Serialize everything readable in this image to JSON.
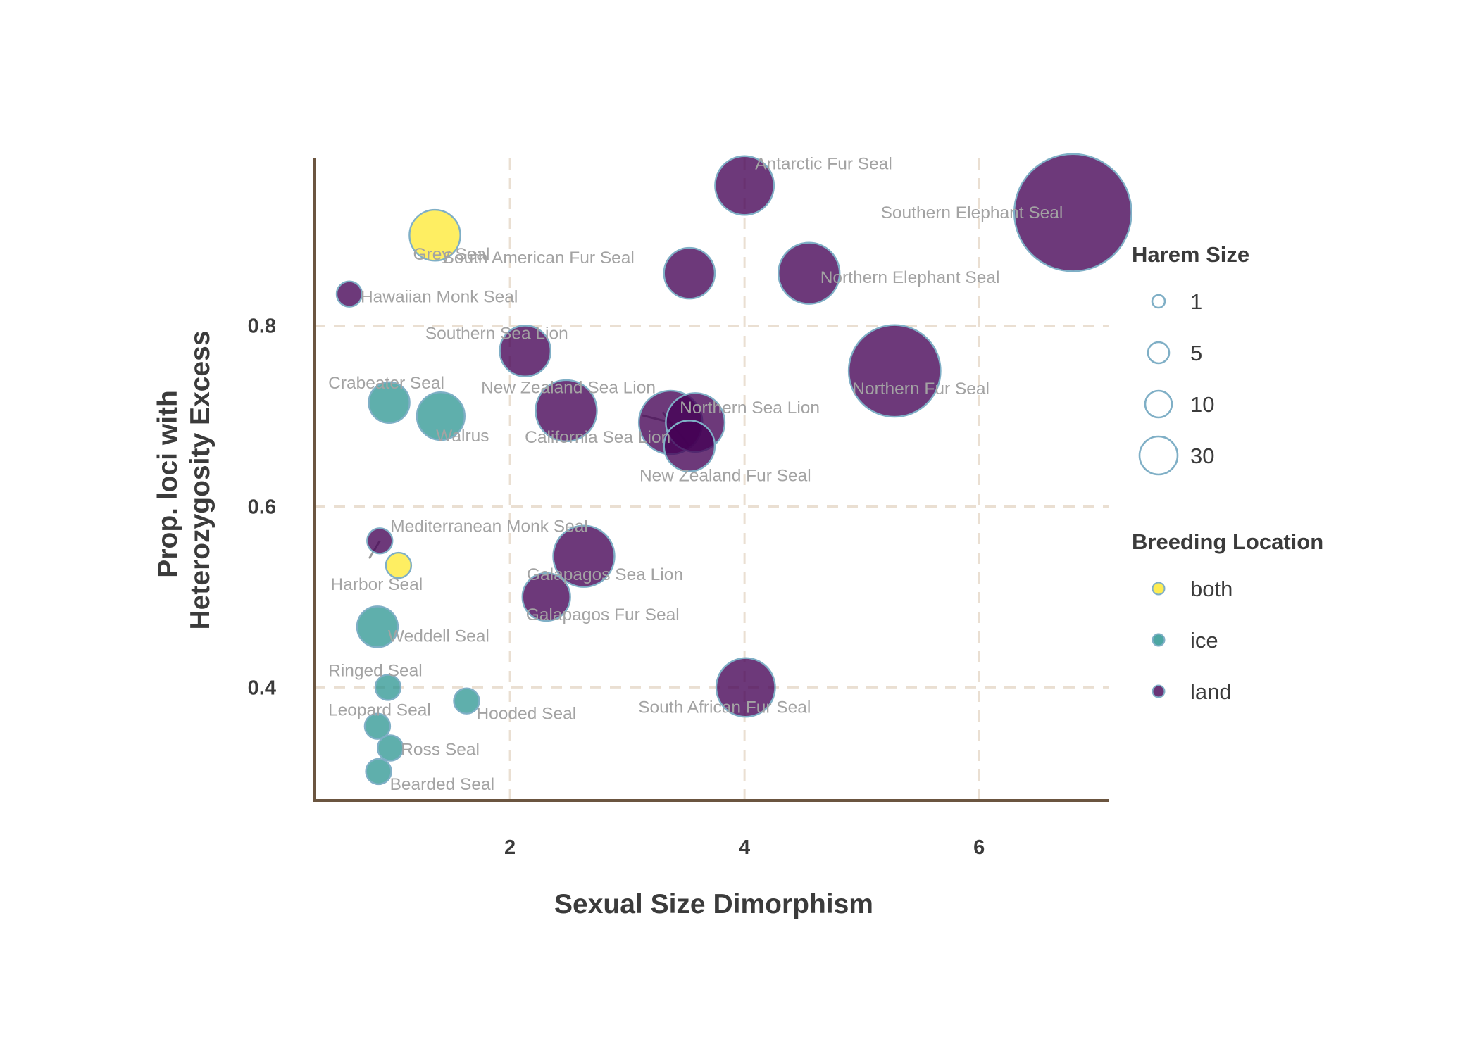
{
  "chart_data": {
    "type": "scatter",
    "xlabel": "Sexual Size Dimorphism",
    "ylabel_lines": [
      "Prop. loci with",
      "Heterozygosity Excess"
    ],
    "xlim": [
      0.33,
      7.11
    ],
    "ylim": [
      0.275,
      0.985
    ],
    "x_ticks": [
      {
        "value": 2,
        "label": "2"
      },
      {
        "value": 4,
        "label": "4"
      },
      {
        "value": 6,
        "label": "6"
      }
    ],
    "y_ticks": [
      {
        "value": 0.4,
        "label": "0.4"
      },
      {
        "value": 0.6,
        "label": "0.6"
      },
      {
        "value": 0.8,
        "label": "0.8"
      }
    ],
    "grid": "dashed major gridlines",
    "colors": {
      "both": "#fde725",
      "ice": "#21908c",
      "land": "#440154",
      "point_stroke": "#7fafc6",
      "axis": "#6b5540",
      "grid": "#eadfd2"
    },
    "legend": {
      "placement": "right",
      "size_title": "Harem Size",
      "size_entries": [
        {
          "label": "1",
          "harem": 1
        },
        {
          "label": "5",
          "harem": 5
        },
        {
          "label": "10",
          "harem": 10
        },
        {
          "label": "30",
          "harem": 30
        }
      ],
      "color_title": "Breeding Location",
      "color_entries": [
        {
          "label": "both",
          "key": "both"
        },
        {
          "label": "ice",
          "key": "ice"
        },
        {
          "label": "land",
          "key": "land"
        }
      ]
    },
    "points": [
      {
        "name": "Antarctic Fur Seal",
        "x": 4.0,
        "y": 0.955,
        "harem": 10,
        "breeding": "land"
      },
      {
        "name": "Southern Elephant Seal",
        "x": 6.8,
        "y": 0.925,
        "harem": 48,
        "breeding": "land"
      },
      {
        "name": "Grey Seal",
        "x": 1.36,
        "y": 0.9,
        "harem": 7,
        "breeding": "both"
      },
      {
        "name": "South American Fur Seal",
        "x": 3.53,
        "y": 0.858,
        "harem": 7,
        "breeding": "land"
      },
      {
        "name": "Northern Elephant Seal",
        "x": 4.55,
        "y": 0.858,
        "harem": 11,
        "breeding": "land"
      },
      {
        "name": "Hawaiian Monk Seal",
        "x": 0.63,
        "y": 0.835,
        "harem": 1,
        "breeding": "land"
      },
      {
        "name": "Southern Sea Lion",
        "x": 2.13,
        "y": 0.772,
        "harem": 7,
        "breeding": "land"
      },
      {
        "name": "Northern Fur Seal",
        "x": 5.28,
        "y": 0.75,
        "harem": 28,
        "breeding": "land"
      },
      {
        "name": "Crabeater Seal",
        "x": 0.97,
        "y": 0.715,
        "harem": 4,
        "breeding": "ice"
      },
      {
        "name": "Walrus",
        "x": 1.41,
        "y": 0.7,
        "harem": 6,
        "breeding": "ice"
      },
      {
        "name": "New Zealand Sea Lion",
        "x": 2.48,
        "y": 0.706,
        "harem": 11,
        "breeding": "land"
      },
      {
        "name": "Northern Sea Lion",
        "x": 3.58,
        "y": 0.693,
        "harem": 10,
        "breeding": "land"
      },
      {
        "name": "California Sea Lion",
        "x": 3.37,
        "y": 0.693,
        "harem": 12,
        "breeding": "land"
      },
      {
        "name": "New Zealand Fur Seal",
        "x": 3.53,
        "y": 0.667,
        "harem": 7,
        "breeding": "land"
      },
      {
        "name": "Mediterranean Monk Seal",
        "x": 0.89,
        "y": 0.562,
        "harem": 1,
        "breeding": "land"
      },
      {
        "name": "Galapagos Sea Lion",
        "x": 2.63,
        "y": 0.545,
        "harem": 11,
        "breeding": "land"
      },
      {
        "name": "Harbor Seal",
        "x": 1.05,
        "y": 0.535,
        "harem": 1,
        "breeding": "both"
      },
      {
        "name": "Galapagos Fur Seal",
        "x": 2.31,
        "y": 0.5,
        "harem": 6,
        "breeding": "land"
      },
      {
        "name": "Weddell Seal",
        "x": 0.87,
        "y": 0.467,
        "harem": 4,
        "breeding": "ice"
      },
      {
        "name": "Ringed Seal",
        "x": 0.96,
        "y": 0.4,
        "harem": 1,
        "breeding": "ice"
      },
      {
        "name": "South African Fur Seal",
        "x": 4.01,
        "y": 0.4,
        "harem": 10,
        "breeding": "land"
      },
      {
        "name": "Hooded Seal",
        "x": 1.63,
        "y": 0.385,
        "harem": 1,
        "breeding": "ice"
      },
      {
        "name": "Leopard Seal",
        "x": 0.87,
        "y": 0.357,
        "harem": 1,
        "breeding": "ice"
      },
      {
        "name": "Ross Seal",
        "x": 0.98,
        "y": 0.333,
        "harem": 1,
        "breeding": "ice"
      },
      {
        "name": "Bearded Seal",
        "x": 0.88,
        "y": 0.307,
        "harem": 1,
        "breeding": "ice"
      }
    ]
  }
}
